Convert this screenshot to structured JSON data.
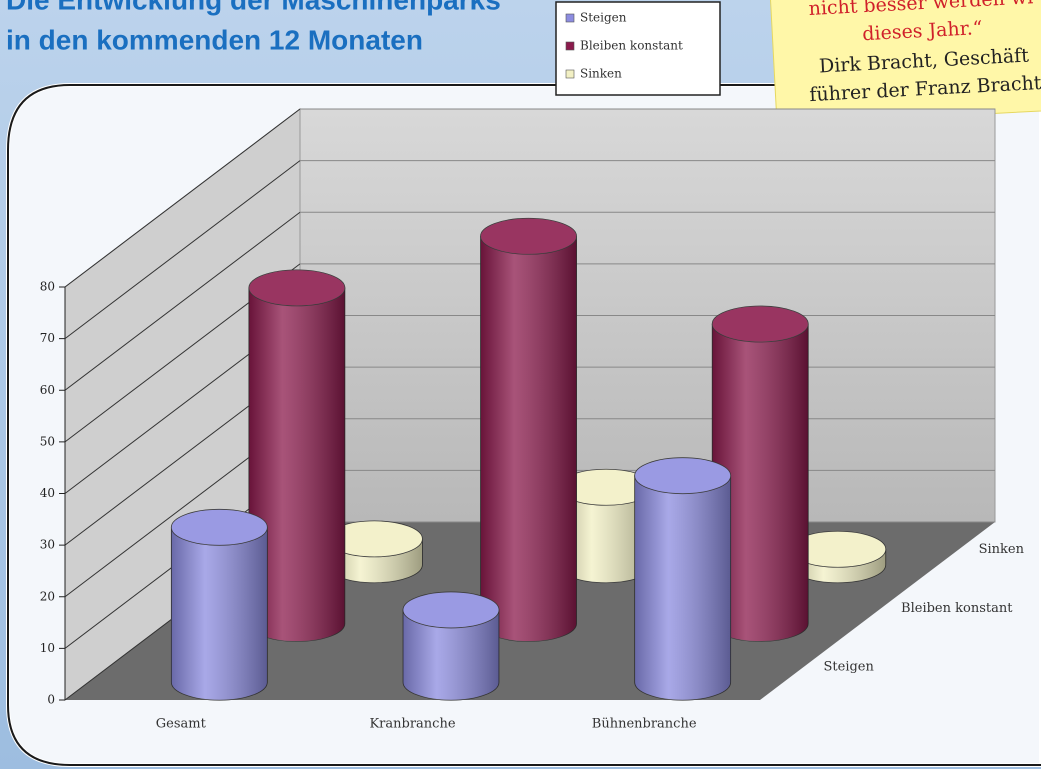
{
  "chart_data": {
    "type": "bar3d",
    "title": [
      "Die Entwicklung der Maschinenparks",
      "in den kommenden 12 Monaten"
    ],
    "note": [
      "nicht besser werden wi",
      "dieses Jahr.“",
      "Dirk Bracht, Geschäft",
      "führer der Franz Bracht"
    ],
    "categories": [
      "Gesamt",
      "Kranbranche",
      "Bühnenbranche"
    ],
    "series": [
      {
        "name": "Steigen",
        "color": "#8c8ce0",
        "values": [
          30,
          14,
          40
        ]
      },
      {
        "name": "Bleiben konstant",
        "color": "#8b1a4c",
        "values": [
          65,
          75,
          58
        ]
      },
      {
        "name": "Sinken",
        "color": "#f2f0c4",
        "values": [
          5,
          15,
          3
        ]
      }
    ],
    "ylim": [
      0,
      80
    ],
    "yticks": [
      0,
      10,
      20,
      30,
      40,
      50,
      60,
      70,
      80
    ],
    "grid": true
  }
}
